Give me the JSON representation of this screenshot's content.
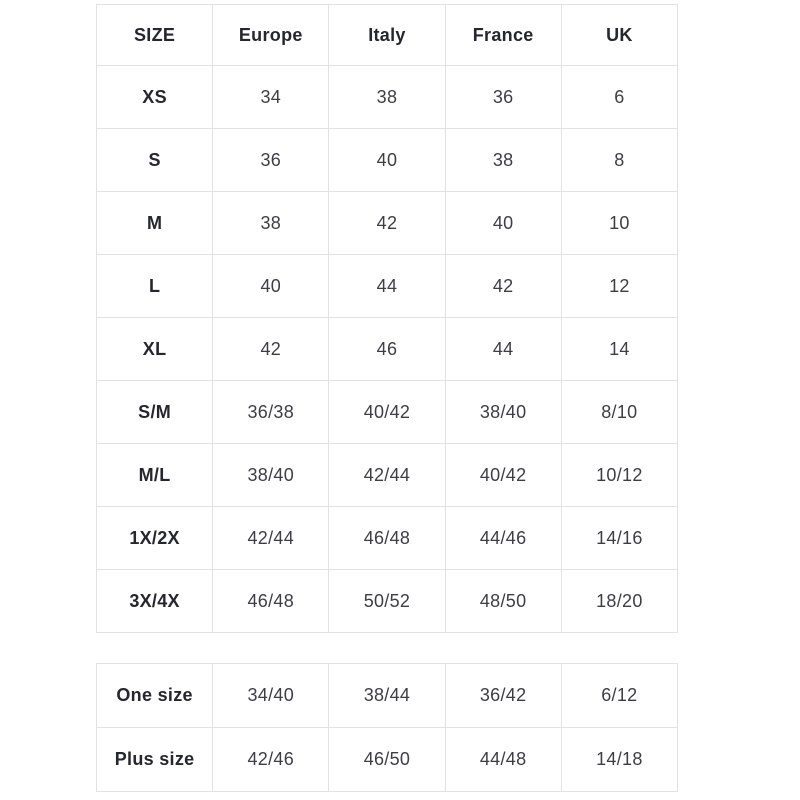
{
  "colors": {
    "background": "#ffffff",
    "border": "#e2e2e2",
    "label_text": "#26262e",
    "value_text": "#3d3d46"
  },
  "size_table": {
    "headers": [
      "SIZE",
      "Europe",
      "Italy",
      "France",
      "UK"
    ],
    "rows": [
      {
        "label": "XS",
        "values": [
          "34",
          "38",
          "36",
          "6"
        ]
      },
      {
        "label": "S",
        "values": [
          "36",
          "40",
          "38",
          "8"
        ]
      },
      {
        "label": "M",
        "values": [
          "38",
          "42",
          "40",
          "10"
        ]
      },
      {
        "label": "L",
        "values": [
          "40",
          "44",
          "42",
          "12"
        ]
      },
      {
        "label": "XL",
        "values": [
          "42",
          "46",
          "44",
          "14"
        ]
      },
      {
        "label": "S/M",
        "values": [
          "36/38",
          "40/42",
          "38/40",
          "8/10"
        ]
      },
      {
        "label": "M/L",
        "values": [
          "38/40",
          "42/44",
          "40/42",
          "10/12"
        ]
      },
      {
        "label": "1X/2X",
        "values": [
          "42/44",
          "46/48",
          "44/46",
          "14/16"
        ]
      },
      {
        "label": "3X/4X",
        "values": [
          "46/48",
          "50/52",
          "48/50",
          "18/20"
        ]
      }
    ]
  },
  "special_table": {
    "rows": [
      {
        "label": "One size",
        "values": [
          "34/40",
          "38/44",
          "36/42",
          "6/12"
        ]
      },
      {
        "label": "Plus size",
        "values": [
          "42/46",
          "46/50",
          "44/48",
          "14/18"
        ]
      }
    ]
  },
  "chart_data": {
    "type": "table",
    "columns": [
      "SIZE",
      "Europe",
      "Italy",
      "France",
      "UK"
    ],
    "rows": [
      [
        "XS",
        "34",
        "38",
        "36",
        "6"
      ],
      [
        "S",
        "36",
        "40",
        "38",
        "8"
      ],
      [
        "M",
        "38",
        "42",
        "40",
        "10"
      ],
      [
        "L",
        "40",
        "44",
        "42",
        "12"
      ],
      [
        "XL",
        "42",
        "46",
        "44",
        "14"
      ],
      [
        "S/M",
        "36/38",
        "40/42",
        "38/40",
        "8/10"
      ],
      [
        "M/L",
        "38/40",
        "42/44",
        "40/42",
        "10/12"
      ],
      [
        "1X/2X",
        "42/44",
        "46/48",
        "44/46",
        "14/16"
      ],
      [
        "3X/4X",
        "46/48",
        "50/52",
        "48/50",
        "18/20"
      ]
    ],
    "secondary_table_rows": [
      [
        "One size",
        "34/40",
        "38/44",
        "36/42",
        "6/12"
      ],
      [
        "Plus size",
        "42/46",
        "46/50",
        "44/48",
        "14/18"
      ]
    ],
    "grid": true,
    "legend_position": "none"
  }
}
